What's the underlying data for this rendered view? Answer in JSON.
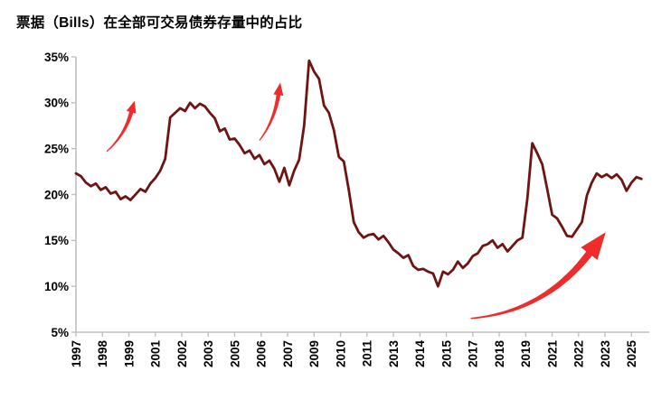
{
  "page": {
    "background": "#ffffff"
  },
  "style": {
    "axis_color": "#c0c0c0",
    "text_color": "#000000",
    "line_color": "#6e1413",
    "arrow_color": "#ee2c2c"
  },
  "chart_data": {
    "type": "line",
    "title": "票据（Bills）在全部可交易债券存量中的占比",
    "x_axis": {
      "tick_labels": [
        "1997",
        "1998",
        "1999",
        "2001",
        "2002",
        "2003",
        "2005",
        "2006",
        "2007",
        "2009",
        "2010",
        "2011",
        "2013",
        "2014",
        "2015",
        "2017",
        "2018",
        "2019",
        "2021",
        "2022",
        "2023",
        "2025"
      ],
      "tick_start_year": 1997,
      "tick_interval_months": 16
    },
    "y_axis": {
      "tick_labels": [
        "35%",
        "30%",
        "25%",
        "20%",
        "15%",
        "10%",
        "5%"
      ],
      "tick_values": [
        35,
        30,
        25,
        20,
        15,
        10,
        5
      ],
      "ylim": [
        5,
        35
      ]
    },
    "grid": false,
    "legend": null,
    "series": [
      {
        "name": "票据（Bills）在全部可交易债券存量中的占比",
        "color": "#6e1413",
        "x_start_year": 1997.0,
        "x_step_years": 0.25,
        "values": [
          22.3,
          22.0,
          21.3,
          20.9,
          21.2,
          20.5,
          20.8,
          20.1,
          20.3,
          19.5,
          19.8,
          19.4,
          20.0,
          20.6,
          20.3,
          21.2,
          21.8,
          22.6,
          23.9,
          28.4,
          28.9,
          29.4,
          29.1,
          30.0,
          29.4,
          29.9,
          29.6,
          28.9,
          28.3,
          26.9,
          27.2,
          26.0,
          26.1,
          25.4,
          24.5,
          24.8,
          23.9,
          24.3,
          23.3,
          23.7,
          22.8,
          21.4,
          22.9,
          21.0,
          22.6,
          23.8,
          27.5,
          34.6,
          33.4,
          32.6,
          29.7,
          28.9,
          27.0,
          24.1,
          23.6,
          20.5,
          17.0,
          15.9,
          15.3,
          15.6,
          15.7,
          15.1,
          15.5,
          14.8,
          14.0,
          13.6,
          13.1,
          13.4,
          12.2,
          11.8,
          11.9,
          11.6,
          11.4,
          10.0,
          11.6,
          11.3,
          11.8,
          12.7,
          12.0,
          12.5,
          13.3,
          13.6,
          14.4,
          14.6,
          15.0,
          14.2,
          14.6,
          13.8,
          14.4,
          15.0,
          15.3,
          19.5,
          25.6,
          24.5,
          23.3,
          20.6,
          17.8,
          17.4,
          16.5,
          15.5,
          15.4,
          16.2,
          17.0,
          19.9,
          21.3,
          22.3,
          21.9,
          22.2,
          21.8,
          22.2,
          21.6,
          20.4,
          21.3,
          21.9,
          21.7
        ]
      }
    ],
    "annotations": {
      "arrow_color": "#ee2c2c",
      "arrows": [
        {
          "label": "up-trend-1998-2000",
          "tail": [
            1998.55,
            24.7
          ],
          "ctrl": [
            1999.45,
            26.4
          ],
          "tip": [
            1999.95,
            30.2
          ],
          "tail_w": 1.2,
          "body_w": 4.5,
          "head_len": 13,
          "head_w": 11
        },
        {
          "label": "up-trend-2006-2007",
          "tail": [
            2006.25,
            25.9
          ],
          "ctrl": [
            2007.0,
            28.0
          ],
          "tip": [
            2007.3,
            32.2
          ],
          "tail_w": 1.2,
          "body_w": 4.5,
          "head_len": 14,
          "head_w": 11
        },
        {
          "label": "up-trend-2017-2023",
          "tail": [
            2016.9,
            6.5
          ],
          "ctrl": [
            2020.6,
            7.2
          ],
          "tip": [
            2023.7,
            15.9
          ],
          "tail_w": 1.5,
          "body_w": 8.0,
          "head_len": 30,
          "head_w": 23
        }
      ]
    }
  }
}
